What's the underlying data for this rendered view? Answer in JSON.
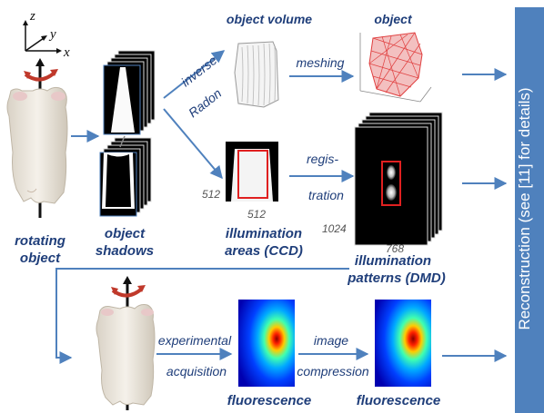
{
  "colors": {
    "arrow": "#4f81bd",
    "label": "#1f3e7a",
    "side_panel": "#4f81bd",
    "highlight_box": "#e02020",
    "mesh": "#e04040"
  },
  "axes": {
    "z": "z",
    "y": "y",
    "x": "x"
  },
  "labels": {
    "object_volume": "object volume",
    "object": "object",
    "rotating_line1": "rotating",
    "rotating_line2": "object",
    "shadows_line1": "object",
    "shadows_line2": "shadows",
    "illum_areas_line1": "illumination",
    "illum_areas_line2": "areas (CCD)",
    "illum_patterns_line1": "illumination",
    "illum_patterns_line2": "patterns (DMD)",
    "fluorescence_1": "fluorescence",
    "fluorescence_2": "fluorescence"
  },
  "steps": {
    "inverse": "inverse",
    "radon": "Radon",
    "meshing": "meshing",
    "registration_line1": "regis-",
    "registration_line2": "tration",
    "experimental": "experimental",
    "acquisition": "acquisition",
    "image": "image",
    "compression": "compression"
  },
  "dimensions": {
    "ccd_height": "512",
    "ccd_width": "512",
    "dmd_height": "1024",
    "dmd_width": "768"
  },
  "side_panel_text": "Reconstruction (see [11] for details)",
  "icons": [
    "rotation-arrow-icon",
    "axes-icon",
    "mouse-figure",
    "mesh-figure",
    "volume-figure",
    "fluorescence-map"
  ]
}
